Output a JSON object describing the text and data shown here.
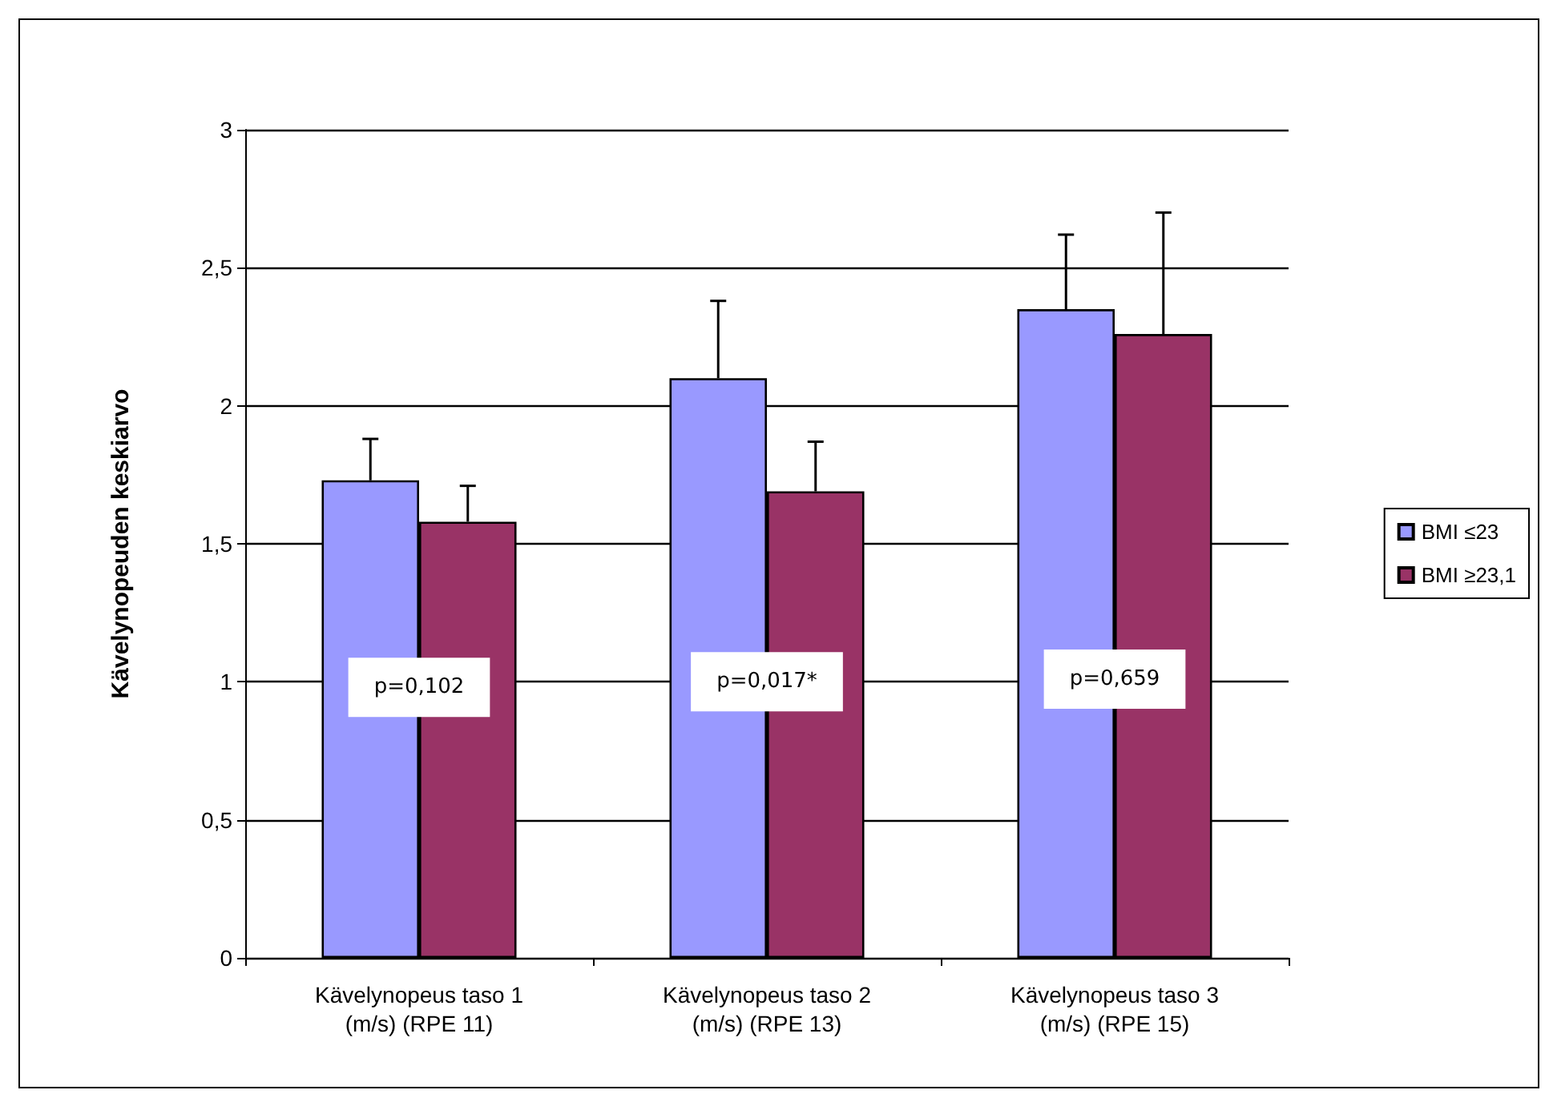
{
  "chart_data": {
    "type": "bar",
    "categories": [
      "Kävelynopeus taso 1\n(m/s) (RPE 11)",
      "Kävelynopeus taso 2\n(m/s) (RPE 13)",
      "Kävelynopeus taso 3\n(m/s) (RPE 15)"
    ],
    "ylabel": "Kävelynopeuden keskiarvo",
    "series": [
      {
        "name": "BMI ≤23",
        "color": "#9999ff",
        "values": [
          1.73,
          2.1,
          2.35
        ],
        "errors": [
          [
            1.73,
            1.88
          ],
          [
            2.1,
            2.38
          ],
          [
            2.35,
            2.62
          ]
        ]
      },
      {
        "name": "BMI ≥23,1",
        "color": "#993366",
        "values": [
          1.58,
          1.69,
          2.26
        ],
        "errors": [
          [
            1.58,
            1.71
          ],
          [
            1.69,
            1.87
          ],
          [
            2.26,
            2.7
          ]
        ]
      }
    ],
    "ylim": [
      0,
      3
    ],
    "yticks": [
      {
        "value": 0,
        "label": "0"
      },
      {
        "value": 0.5,
        "label": "0,5"
      },
      {
        "value": 1,
        "label": "1"
      },
      {
        "value": 1.5,
        "label": "1,5"
      },
      {
        "value": 2,
        "label": "2"
      },
      {
        "value": 2.5,
        "label": "2,5"
      },
      {
        "value": 3,
        "label": "3"
      }
    ],
    "grid": true,
    "legend": "right",
    "annotations": [
      {
        "text": "p=0,102",
        "x": "Kävelynopeus taso 1\n(m/s) (RPE 11)",
        "y": 0.98
      },
      {
        "text": "p=0,017*",
        "x": "Kävelynopeus taso 2\n(m/s) (RPE 13)",
        "y": 1.0
      },
      {
        "text": "p=0,659",
        "x": "Kävelynopeus taso 3\n(m/s) (RPE 15)",
        "y": 1.01
      }
    ]
  }
}
